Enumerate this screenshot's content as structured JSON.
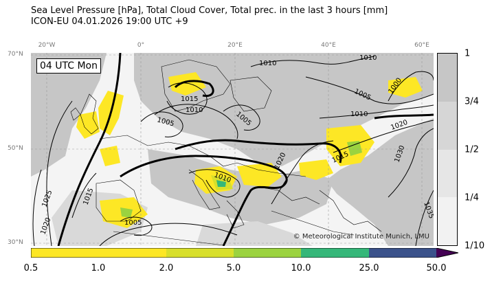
{
  "title": {
    "line1": "Sea Level Pressure [hPa], Total Cloud Cover, Total prec. in the last 3 hours [mm]",
    "line2": "ICON-EU 04.01.2026 19:00 UTC +9"
  },
  "map": {
    "time_label": "04 UTC Mon",
    "credit": "© Meteorological Institute Munich, LMU",
    "longitude_ticks": [
      "20°W",
      "0°",
      "20°E",
      "40°E",
      "60°E"
    ],
    "latitude_ticks": [
      "70°N",
      "50°N",
      "30°N"
    ],
    "isobar_labels": [
      "1010",
      "1010",
      "1000",
      "1005",
      "1015",
      "1010",
      "1005",
      "1005",
      "1010",
      "1020",
      "1015",
      "1020",
      "1030",
      "1010",
      "1025",
      "1015",
      "1020",
      "1005",
      "1035"
    ],
    "colors": {
      "cloud_light": "#ebebeb",
      "cloud_mid": "#d9d9d9",
      "cloud_dense": "#c6c6c6",
      "isobar": "#000000"
    }
  },
  "cloud_colorbar": {
    "tick_labels": [
      "1",
      "3/4",
      "1/2",
      "1/4",
      "1/10"
    ],
    "colors": [
      "#c6c6c6",
      "#d6d6d6",
      "#e6e6e6",
      "#f2f2f2"
    ]
  },
  "precip_colorbar": {
    "tick_labels": [
      "0.5",
      "1.0",
      "2.0",
      "5.0",
      "10.0",
      "25.0",
      "50.0"
    ],
    "colors": [
      "#fde725",
      "#fde725",
      "#d8df2b",
      "#9bd33f",
      "#35b779",
      "#3b528b",
      "#440154"
    ]
  }
}
